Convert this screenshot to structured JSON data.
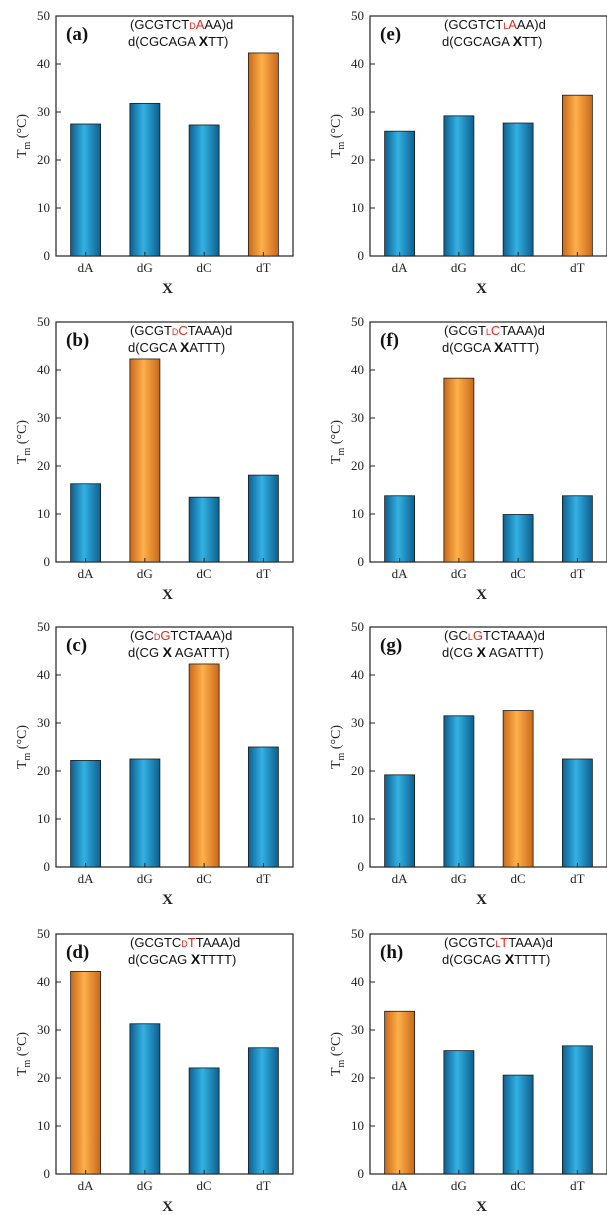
{
  "colors": {
    "bar_blue": "#1f8fc4",
    "bar_orange": "#f29a2e",
    "modified_base_red": "#e0291f",
    "axis": "#222222"
  },
  "y_axis": {
    "label_main": "T",
    "label_sub": "m",
    "label_unit": " (°C)",
    "ticks": [
      "0",
      "10",
      "20",
      "30",
      "40",
      "50"
    ],
    "ylim": [
      0,
      50
    ]
  },
  "chart_data": [
    {
      "type": "bar",
      "panel": "(a)",
      "seq1": {
        "pre": "(GCGTCT",
        "mod_prefix": "D",
        "mod_base": "A",
        "post": "AA)d"
      },
      "seq2": {
        "pre": "d(CGCAGA ",
        "x": "X",
        "post": "TT)"
      },
      "xlabel": "X",
      "categories": [
        "dA",
        "dG",
        "dC",
        "dT"
      ],
      "values": [
        27.5,
        31.8,
        27.3,
        42.3
      ],
      "highlight": "dT"
    },
    {
      "type": "bar",
      "panel": "(e)",
      "seq1": {
        "pre": "(GCGTCT",
        "mod_prefix": "L",
        "mod_base": "A",
        "post": "AA)d"
      },
      "seq2": {
        "pre": "d(CGCAGA ",
        "x": "X",
        "post": "TT)"
      },
      "xlabel": "X",
      "categories": [
        "dA",
        "dG",
        "dC",
        "dT"
      ],
      "values": [
        26.0,
        29.2,
        27.7,
        33.5
      ],
      "highlight": "dT"
    },
    {
      "type": "bar",
      "panel": "(b)",
      "seq1": {
        "pre": "(GCGT",
        "mod_prefix": "D",
        "mod_base": "C",
        "post": "TAAA)d"
      },
      "seq2": {
        "pre": "d(CGCA ",
        "x": "X",
        "post": "ATTT)"
      },
      "xlabel": "X",
      "categories": [
        "dA",
        "dG",
        "dC",
        "dT"
      ],
      "values": [
        16.3,
        42.3,
        13.5,
        18.1
      ],
      "highlight": "dG"
    },
    {
      "type": "bar",
      "panel": "(f)",
      "seq1": {
        "pre": "(GCGT",
        "mod_prefix": "L",
        "mod_base": "C",
        "post": "TAAA)d"
      },
      "seq2": {
        "pre": "d(CGCA ",
        "x": "X",
        "post": "ATTT)"
      },
      "xlabel": "X",
      "categories": [
        "dA",
        "dG",
        "dC",
        "dT"
      ],
      "values": [
        13.8,
        38.3,
        9.9,
        13.8
      ],
      "highlight": "dG"
    },
    {
      "type": "bar",
      "panel": "(c)",
      "seq1": {
        "pre": "(GC",
        "mod_prefix": "D",
        "mod_base": "G",
        "post": "TCTAAA)d"
      },
      "seq2": {
        "pre": "d(CG ",
        "x": "X",
        "post": " AGATTT)"
      },
      "xlabel": "X",
      "categories": [
        "dA",
        "dG",
        "dC",
        "dT"
      ],
      "values": [
        22.2,
        22.5,
        42.3,
        25.0
      ],
      "highlight": "dC"
    },
    {
      "type": "bar",
      "panel": "(g)",
      "seq1": {
        "pre": "(GC",
        "mod_prefix": "L",
        "mod_base": "G",
        "post": "TCTAAA)d"
      },
      "seq2": {
        "pre": "d(CG ",
        "x": "X",
        "post": " AGATTT)"
      },
      "xlabel": "X",
      "categories": [
        "dA",
        "dG",
        "dC",
        "dT"
      ],
      "values": [
        19.2,
        31.5,
        32.6,
        22.5
      ],
      "highlight": "dC"
    },
    {
      "type": "bar",
      "panel": "(d)",
      "seq1": {
        "pre": "(GCGTC",
        "mod_prefix": "D",
        "mod_base": "T",
        "post": "TAAA)d"
      },
      "seq2": {
        "pre": "d(CGCAG ",
        "x": "X",
        "post": "TTTT)"
      },
      "xlabel": "X",
      "categories": [
        "dA",
        "dG",
        "dC",
        "dT"
      ],
      "values": [
        42.2,
        31.3,
        22.1,
        26.3
      ],
      "highlight": "dA"
    },
    {
      "type": "bar",
      "panel": "(h)",
      "seq1": {
        "pre": "(GCGTC",
        "mod_prefix": "L",
        "mod_base": "T",
        "post": "TAAA)d"
      },
      "seq2": {
        "pre": "d(CGCAG ",
        "x": "X",
        "post": "TTTT)"
      },
      "xlabel": "X",
      "categories": [
        "dA",
        "dG",
        "dC",
        "dT"
      ],
      "values": [
        33.9,
        25.7,
        20.6,
        26.7
      ],
      "highlight": "dA"
    }
  ]
}
